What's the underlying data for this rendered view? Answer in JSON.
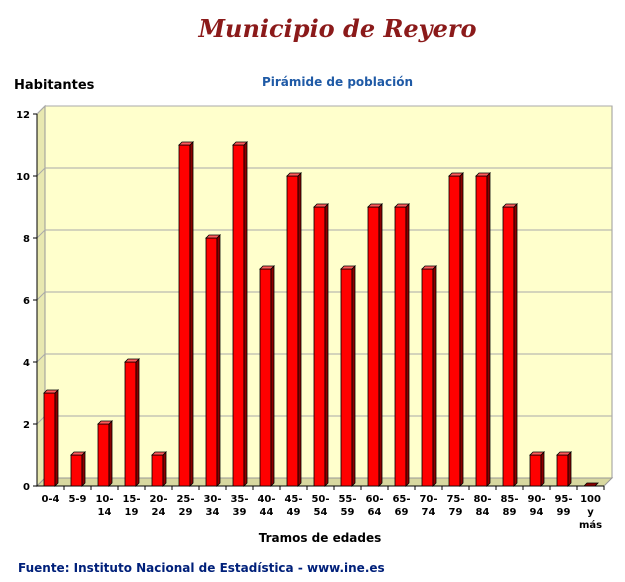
{
  "header": {
    "title": "Municipio de Reyero",
    "subtitle": "Pirámide de población",
    "y_axis_title": "Habitantes",
    "x_axis_title": "Tramos de edades"
  },
  "footer": {
    "source": "Fuente: Instituto Nacional de Estadística - www.ine.es"
  },
  "colors": {
    "bar_front": "#ff0000",
    "bar_side": "#8b0000",
    "bar_top": "#ff5a5a",
    "plot_bg": "#ffffcc",
    "title": "#8b1a1a",
    "subtitle": "#1f5aa6"
  },
  "chart_data": {
    "type": "bar",
    "title": "Municipio de Reyero",
    "subtitle": "Pirámide de población",
    "xlabel": "Tramos de edades",
    "ylabel": "Habitantes",
    "categories": [
      "0-4",
      "5-9",
      "10-14",
      "15-19",
      "20-24",
      "25-29",
      "30-34",
      "35-39",
      "40-44",
      "45-49",
      "50-54",
      "55-59",
      "60-64",
      "65-69",
      "70-74",
      "75-79",
      "80-84",
      "85-89",
      "90-94",
      "95-99",
      "100 y más"
    ],
    "values": [
      3,
      1,
      2,
      4,
      1,
      11,
      8,
      11,
      7,
      10,
      9,
      7,
      9,
      9,
      7,
      10,
      10,
      9,
      1,
      1,
      0
    ],
    "ylim": [
      0,
      12
    ],
    "yticks": [
      0,
      2,
      4,
      6,
      8,
      10,
      12
    ],
    "grid": true,
    "legend": "none"
  }
}
